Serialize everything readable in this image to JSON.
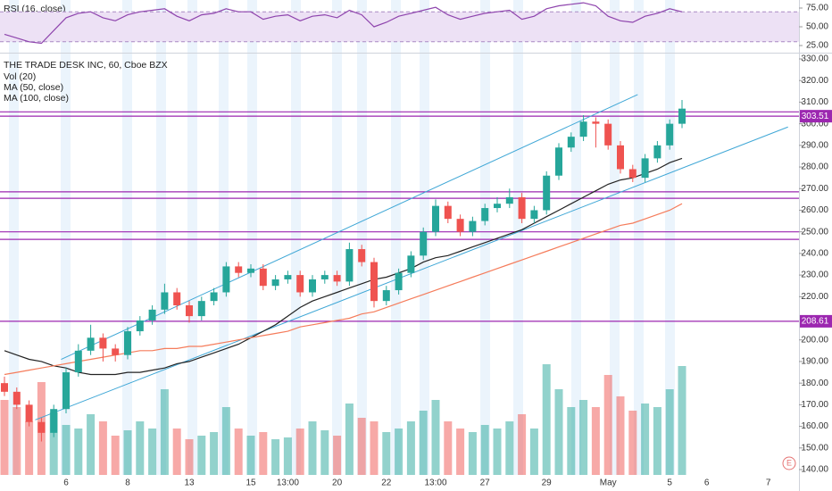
{
  "chart_data": {
    "type": "candlestick",
    "title": "THE TRADE DESK INC, 60, Cboe BZX",
    "indicator_labels": [
      "Vol (20)",
      "MA (50, close)",
      "MA (100, close)"
    ],
    "rsi_title": "RSI (16, close)",
    "earnings_marker": "E",
    "categories": [
      null,
      null,
      null,
      null,
      null,
      "6",
      null,
      null,
      null,
      null,
      "8",
      null,
      null,
      null,
      null,
      "13",
      null,
      null,
      null,
      null,
      "15",
      null,
      null,
      "13:00",
      null,
      null,
      null,
      "20",
      null,
      null,
      null,
      "22",
      null,
      null,
      null,
      "13:00",
      null,
      null,
      null,
      "27",
      null,
      null,
      null,
      null,
      "29",
      null,
      null,
      null,
      null,
      "May",
      null,
      null,
      null,
      null,
      "5",
      null,
      null,
      "6",
      null,
      null,
      null,
      null,
      "7"
    ],
    "open": [
      180,
      176,
      170,
      162,
      157,
      168,
      185,
      195,
      201,
      196,
      193,
      204,
      209,
      214,
      222,
      216,
      211,
      218,
      222,
      234,
      231,
      233,
      225,
      228,
      230,
      222,
      228,
      230,
      227,
      242,
      236,
      218,
      223,
      231,
      239,
      250,
      262,
      256,
      250,
      255,
      261,
      263,
      266,
      256,
      260,
      276,
      289,
      294,
      301,
      300,
      290,
      279,
      275,
      284,
      290,
      300,
      null,
      null,
      null,
      null,
      null,
      null,
      null
    ],
    "high": [
      183,
      178,
      172,
      164,
      170,
      187,
      198,
      207,
      203,
      198,
      206,
      211,
      216,
      226,
      224,
      218,
      220,
      224,
      236,
      236,
      235,
      235,
      230,
      232,
      232,
      230,
      232,
      232,
      245,
      244,
      238,
      225,
      233,
      241,
      252,
      265,
      264,
      258,
      257,
      263,
      266,
      270,
      268,
      262,
      278,
      291,
      296,
      304,
      303,
      302,
      292,
      281,
      286,
      292,
      302,
      311,
      null,
      null,
      null,
      null,
      null,
      null,
      null
    ],
    "low": [
      174,
      168,
      160,
      153,
      155,
      166,
      183,
      193,
      190,
      190,
      191,
      202,
      207,
      212,
      214,
      208,
      209,
      216,
      220,
      229,
      229,
      223,
      223,
      226,
      220,
      220,
      226,
      225,
      225,
      234,
      215,
      216,
      221,
      229,
      237,
      248,
      254,
      248,
      248,
      253,
      259,
      261,
      254,
      254,
      258,
      274,
      287,
      292,
      289,
      288,
      277,
      273,
      273,
      282,
      288,
      298,
      null,
      null,
      null,
      null,
      null,
      null,
      null
    ],
    "close": [
      176,
      170,
      162,
      157,
      168,
      185,
      195,
      201,
      196,
      193,
      204,
      209,
      214,
      222,
      216,
      211,
      218,
      222,
      234,
      231,
      233,
      225,
      228,
      230,
      222,
      228,
      230,
      227,
      242,
      236,
      218,
      223,
      231,
      239,
      250,
      262,
      256,
      250,
      255,
      261,
      263,
      266,
      256,
      260,
      276,
      289,
      294,
      301,
      300,
      290,
      279,
      275,
      284,
      290,
      300,
      307,
      null,
      null,
      null,
      null,
      null,
      null,
      null
    ],
    "volume": [
      420,
      380,
      300,
      520,
      350,
      280,
      260,
      340,
      300,
      220,
      250,
      300,
      260,
      480,
      260,
      200,
      220,
      240,
      380,
      260,
      220,
      240,
      200,
      210,
      260,
      300,
      250,
      220,
      400,
      320,
      300,
      240,
      260,
      300,
      360,
      420,
      300,
      260,
      240,
      280,
      260,
      300,
      340,
      260,
      620,
      480,
      380,
      420,
      380,
      560,
      440,
      360,
      400,
      380,
      480,
      610,
      null,
      null,
      null,
      null,
      null,
      null,
      null
    ],
    "vlim": [
      0,
      700
    ],
    "up_color": "#26a69a",
    "down_color": "#ef5350",
    "ma": [
      {
        "name": "MA (50, close)",
        "color": "#222222",
        "values": [
          195,
          193,
          191,
          190,
          188,
          187,
          185,
          184,
          184,
          184,
          185,
          185,
          186,
          187,
          189,
          190,
          192,
          194,
          196,
          198,
          201,
          204,
          207,
          211,
          215,
          218,
          220,
          222,
          224,
          226,
          228,
          229,
          231,
          233,
          236,
          238,
          239,
          241,
          243,
          245,
          247,
          249,
          251,
          254,
          257,
          260,
          263,
          266,
          269,
          272,
          274,
          275,
          277,
          279,
          282,
          284,
          null,
          null,
          null,
          null,
          null,
          null,
          null
        ]
      },
      {
        "name": "MA (100, close)",
        "color": "#f57c5b",
        "values": [
          184,
          185,
          186,
          187,
          188,
          189,
          190,
          191,
          192,
          193,
          194,
          195,
          195,
          196,
          196,
          197,
          197,
          198,
          199,
          200,
          201,
          202,
          203,
          204,
          206,
          207,
          208,
          209,
          210,
          212,
          213,
          215,
          217,
          219,
          221,
          223,
          225,
          227,
          229,
          231,
          233,
          235,
          237,
          239,
          241,
          243,
          245,
          247,
          249,
          251,
          253,
          254,
          256,
          258,
          260,
          263,
          null,
          null,
          null,
          null,
          null,
          null,
          null
        ]
      }
    ],
    "rsi": [
      40,
      35,
      30,
      28,
      45,
      62,
      68,
      70,
      62,
      58,
      66,
      70,
      72,
      74,
      64,
      58,
      66,
      68,
      74,
      70,
      70,
      60,
      64,
      66,
      58,
      64,
      66,
      62,
      72,
      66,
      50,
      56,
      64,
      68,
      72,
      76,
      66,
      60,
      64,
      68,
      70,
      72,
      60,
      64,
      74,
      78,
      80,
      82,
      78,
      64,
      58,
      56,
      64,
      68,
      74,
      70,
      null,
      null,
      null,
      null,
      null,
      null,
      null
    ],
    "rsi_color": "#8e44ad",
    "rsi_ylim": [
      15,
      85
    ],
    "rsi_band": [
      30,
      70
    ],
    "rsi_ticks": [
      {
        "value": 75,
        "label": "75.00"
      },
      {
        "value": 50,
        "label": "50.00"
      },
      {
        "value": 25,
        "label": "25.00"
      }
    ],
    "levels": [
      305.5,
      {
        "value": 303.51,
        "label": "303.51"
      },
      268.5,
      265.5,
      250,
      246.5,
      {
        "value": 208.61,
        "label": "208.61"
      }
    ],
    "level_color": "#9c27b0",
    "trendlines": [
      {
        "x": [
          2.5,
          63.6
        ],
        "y": [
          163,
          298.5
        ]
      },
      {
        "x": [
          4.6,
          51.4
        ],
        "y": [
          191,
          313.5
        ]
      }
    ],
    "trendline_color": "#3fa7d6",
    "ylim": [
      140,
      330
    ],
    "yticks": [
      {
        "value": 330,
        "label": "330.00"
      },
      {
        "value": 320,
        "label": "320.00"
      },
      {
        "value": 310,
        "label": "310.00"
      },
      {
        "value": 300,
        "label": "300.00"
      },
      {
        "value": 290,
        "label": "290.00"
      },
      {
        "value": 280,
        "label": "280.00"
      },
      {
        "value": 270,
        "label": "270.00"
      },
      {
        "value": 260,
        "label": "260.00"
      },
      {
        "value": 250,
        "label": "250.00"
      },
      {
        "value": 240,
        "label": "240.00"
      },
      {
        "value": 230,
        "label": "230.00"
      },
      {
        "value": 220,
        "label": "220.00"
      },
      {
        "value": 200,
        "label": "200.00"
      },
      {
        "value": 190,
        "label": "190.00"
      },
      {
        "value": 180,
        "label": "180.00"
      },
      {
        "value": 170,
        "label": "170.00"
      },
      {
        "value": 160,
        "label": "160.00"
      },
      {
        "value": 150,
        "label": "150.00"
      },
      {
        "value": 140,
        "label": "140.00"
      }
    ]
  }
}
